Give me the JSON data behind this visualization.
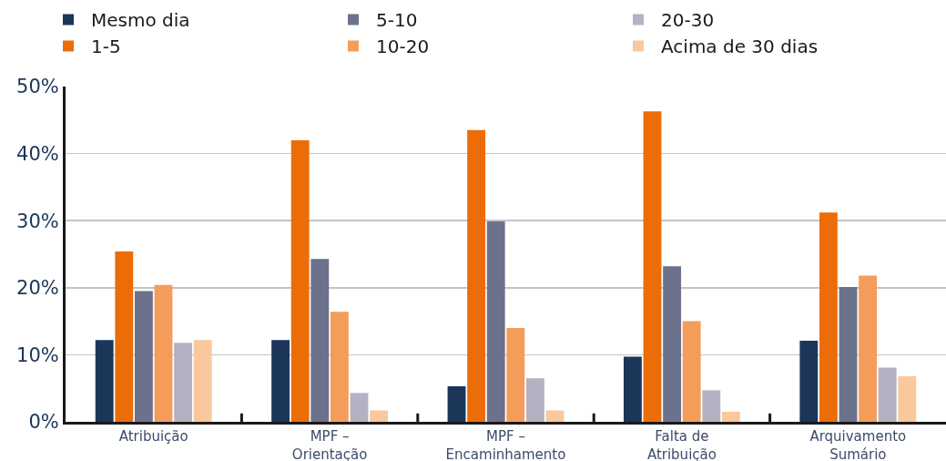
{
  "chart_data": {
    "type": "bar",
    "categories": [
      "Atribuição",
      "MPF – Orientação",
      "MPF – Encaminhamento",
      "Falta de Atribuição",
      "Arquivamento Sumário"
    ],
    "series": [
      {
        "name": "Mesmo dia",
        "color": "#1b3658",
        "values": [
          12.2,
          12.2,
          5.3,
          9.7,
          12.1
        ]
      },
      {
        "name": "1-5",
        "color": "#ec6d07",
        "values": [
          25.4,
          42.0,
          43.5,
          46.3,
          31.2
        ]
      },
      {
        "name": "5-10",
        "color": "#6c718c",
        "values": [
          19.5,
          24.3,
          29.9,
          23.2,
          20.1
        ]
      },
      {
        "name": "10-20",
        "color": "#f49d5a",
        "values": [
          20.4,
          16.4,
          14.0,
          15.0,
          21.8
        ]
      },
      {
        "name": "20-30",
        "color": "#b3b2c3",
        "values": [
          11.8,
          4.3,
          6.5,
          4.7,
          8.1
        ]
      },
      {
        "name": "Acima de 30 dias",
        "color": "#f9c89d",
        "values": [
          12.2,
          1.7,
          1.7,
          1.5,
          6.8
        ]
      }
    ],
    "ylim": [
      0,
      50
    ],
    "yticks": [
      {
        "value": 0,
        "label": "0%"
      },
      {
        "value": 10,
        "label": "10%"
      },
      {
        "value": 20,
        "label": "20%"
      },
      {
        "value": 30,
        "label": "30%"
      },
      {
        "value": 40,
        "label": "40%"
      },
      {
        "value": 50,
        "label": "50%"
      }
    ],
    "grid": "y",
    "legend": "top"
  }
}
